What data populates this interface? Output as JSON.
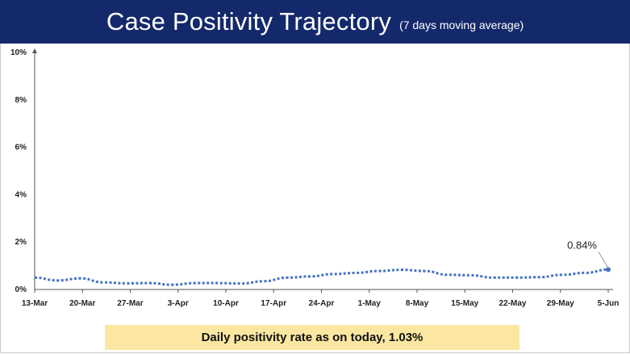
{
  "header": {
    "title": "Case Positivity Trajectory",
    "subtitle": "(7 days moving average)"
  },
  "footer": {
    "text": "Daily positivity rate as on today, 1.03%"
  },
  "colors": {
    "header_bg": "#14296b",
    "series": "#4472c4",
    "footer_bg": "#fbe7a1"
  },
  "chart_data": {
    "type": "line",
    "title": "Case Positivity Trajectory",
    "subtitle": "(7 days moving average)",
    "x_tick_labels": [
      "13-Mar",
      "20-Mar",
      "27-Mar",
      "3-Apr",
      "10-Apr",
      "17-Apr",
      "24-Apr",
      "1-May",
      "8-May",
      "15-May",
      "22-May",
      "29-May",
      "5-Jun"
    ],
    "y_tick_labels": [
      "0%",
      "2%",
      "4%",
      "6%",
      "8%",
      "10%"
    ],
    "ylim": [
      0,
      10
    ],
    "y_ticks": [
      0,
      2,
      4,
      6,
      8,
      10
    ],
    "series": [
      {
        "line_style": "dotted",
        "values": [
          0.5,
          0.38,
          0.47,
          0.3,
          0.26,
          0.27,
          0.2,
          0.27,
          0.27,
          0.25,
          0.35,
          0.5,
          0.55,
          0.65,
          0.7,
          0.78,
          0.83,
          0.78,
          0.62,
          0.6,
          0.5,
          0.5,
          0.52,
          0.62,
          0.7,
          0.84
        ]
      }
    ],
    "annotations": [
      {
        "text": "0.84%",
        "target": "last-point"
      }
    ],
    "grid": false
  }
}
